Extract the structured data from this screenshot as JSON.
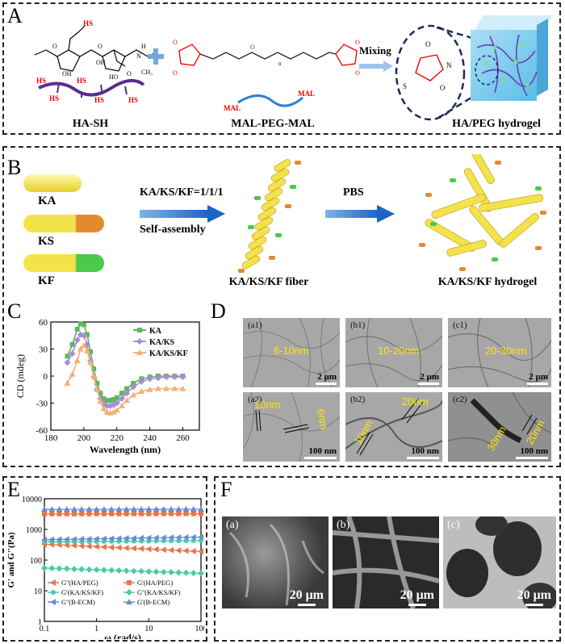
{
  "panels": {
    "a": {
      "label": "A",
      "ha_sh_caption": "HA-SH",
      "peg_caption": "MAL-PEG-MAL",
      "hydrogel_caption": "HA/PEG hydrogel",
      "mixing_label": "Mixing",
      "hs_labels": [
        "HS",
        "HS",
        "HS",
        "HS",
        "HS"
      ],
      "mal_labels": [
        "MAL",
        "MAL"
      ],
      "struct_labels": {
        "hs_top": "HS",
        "oh1": "OH",
        "oh2": "OH",
        "ho": "HO",
        "o1": "O",
        "o2": "O",
        "nh": "H",
        "n": "N",
        "ch3": "CH₃",
        "o_carbonyl": "O",
        "n_sub": "n"
      },
      "ring_labels": {
        "o_top": "O",
        "o_bottom": "O",
        "n": "N",
        "s": "S"
      }
    },
    "b": {
      "label": "B",
      "peptides": [
        "KA",
        "KS",
        "KF"
      ],
      "ratio_label": "KA/KS/KF=1/1/1",
      "assembly_label": "Self-assembly",
      "buffer_label": "PBS",
      "fiber_caption": "KA/KS/KF fiber",
      "hydrogel_caption": "KA/KS/KF hydrogel"
    },
    "c": {
      "label": "C"
    },
    "d": {
      "label": "D",
      "images": [
        {
          "tag": "(a1)",
          "text": "6-10nm",
          "scale": "2 μm"
        },
        {
          "tag": "(b1)",
          "text": "10-20nm",
          "scale": "2 μm"
        },
        {
          "tag": "(c1)",
          "text": "20-30nm",
          "scale": "2 μm"
        },
        {
          "tag": "(a2)",
          "text1": "10nm",
          "text2": "6nm",
          "scale": "100 nm"
        },
        {
          "tag": "(b2)",
          "text1": "10nm",
          "text2": "20nm",
          "scale": "100 nm"
        },
        {
          "tag": "(c2)",
          "text1": "30nm",
          "text2": "20nm",
          "scale": "100 nm"
        }
      ]
    },
    "e": {
      "label": "E"
    },
    "f": {
      "label": "F",
      "images": [
        {
          "tag": "(a)",
          "scale": "20 μm"
        },
        {
          "tag": "(b)",
          "scale": "20 μm"
        },
        {
          "tag": "(c)",
          "scale": "20 μm"
        }
      ]
    }
  },
  "chart_data": [
    {
      "type": "line",
      "panel": "C",
      "xlabel": "Wavelength (nm)",
      "ylabel": "CD (mdeg)",
      "xlim": [
        180,
        270
      ],
      "ylim": [
        -60,
        60
      ],
      "xticks": [
        180,
        200,
        220,
        240,
        260
      ],
      "yticks": [
        -60,
        -30,
        0,
        30,
        60
      ],
      "legend_position": "top-right",
      "series": [
        {
          "name": "KA",
          "color": "#5cb85c",
          "x": [
            190,
            193,
            196,
            198,
            200,
            202,
            204,
            206,
            208,
            210,
            212,
            214,
            216,
            218,
            220,
            223,
            226,
            230,
            235,
            240,
            245,
            250,
            255,
            260
          ],
          "y": [
            22,
            35,
            52,
            58,
            57,
            46,
            27,
            8,
            -8,
            -19,
            -25,
            -27,
            -27,
            -26,
            -24,
            -19,
            -14,
            -8,
            -3,
            -1,
            0,
            0,
            0,
            0
          ]
        },
        {
          "name": "KA/KS",
          "color": "#a98bd6",
          "x": [
            190,
            193,
            196,
            198,
            200,
            202,
            204,
            206,
            208,
            210,
            212,
            214,
            216,
            218,
            220,
            223,
            226,
            230,
            235,
            240,
            245,
            250,
            255,
            260
          ],
          "y": [
            15,
            25,
            40,
            46,
            45,
            35,
            17,
            -1,
            -15,
            -25,
            -31,
            -33,
            -33,
            -32,
            -30,
            -25,
            -19,
            -12,
            -6,
            -3,
            -2,
            -1,
            -1,
            -1
          ]
        },
        {
          "name": "KA/KS/KF",
          "color": "#f3b07a",
          "x": [
            190,
            193,
            196,
            198,
            200,
            202,
            204,
            206,
            208,
            210,
            212,
            214,
            216,
            218,
            220,
            223,
            226,
            230,
            235,
            240,
            245,
            250,
            255,
            260
          ],
          "y": [
            -8,
            2,
            17,
            30,
            34,
            28,
            15,
            0,
            -15,
            -28,
            -36,
            -40,
            -41,
            -40,
            -38,
            -33,
            -27,
            -21,
            -17,
            -15,
            -14,
            -14,
            -14,
            -14
          ]
        }
      ]
    },
    {
      "type": "line",
      "panel": "E",
      "xlabel": "ω (rad/s)",
      "ylabel": "G' and G''(Pa)",
      "xscale": "log",
      "yscale": "log",
      "xlim": [
        0.1,
        100
      ],
      "ylim": [
        1,
        10000
      ],
      "xticks": [
        0.1,
        1,
        10,
        100
      ],
      "xticklabels": [
        "0.1",
        "1",
        "10",
        "100"
      ],
      "yticks": [
        1,
        10,
        100,
        1000,
        10000
      ],
      "yticklabels": [
        "1",
        "10",
        "100",
        "1000",
        "10000"
      ],
      "legend_position": "bottom",
      "series": [
        {
          "name": "G''(HA/PEG)",
          "color": "#e8744a",
          "marker": "triangle-left",
          "x0": 0.1,
          "x1": 100,
          "y0": 330,
          "y1": 190
        },
        {
          "name": "G'(HA/PEG)",
          "color": "#e8744a",
          "marker": "square",
          "x0": 0.1,
          "x1": 100,
          "y0": 3200,
          "y1": 3250
        },
        {
          "name": "G'(KA/KS/KF)",
          "color": "#4cc9a8",
          "marker": "circle",
          "x0": 0.1,
          "x1": 100,
          "y0": 390,
          "y1": 430
        },
        {
          "name": "G''(KA/KS/KF)",
          "color": "#4cc9a8",
          "marker": "diamond",
          "x0": 0.1,
          "x1": 100,
          "y0": 55,
          "y1": 37
        },
        {
          "name": "G''(B-ECM)",
          "color": "#6b8ccf",
          "marker": "triangle-left",
          "x0": 0.1,
          "x1": 100,
          "y0": 460,
          "y1": 560
        },
        {
          "name": "G'(B-ECM)",
          "color": "#6b8ccf",
          "marker": "triangle-up",
          "x0": 0.1,
          "x1": 100,
          "y0": 4500,
          "y1": 4550
        }
      ]
    }
  ]
}
